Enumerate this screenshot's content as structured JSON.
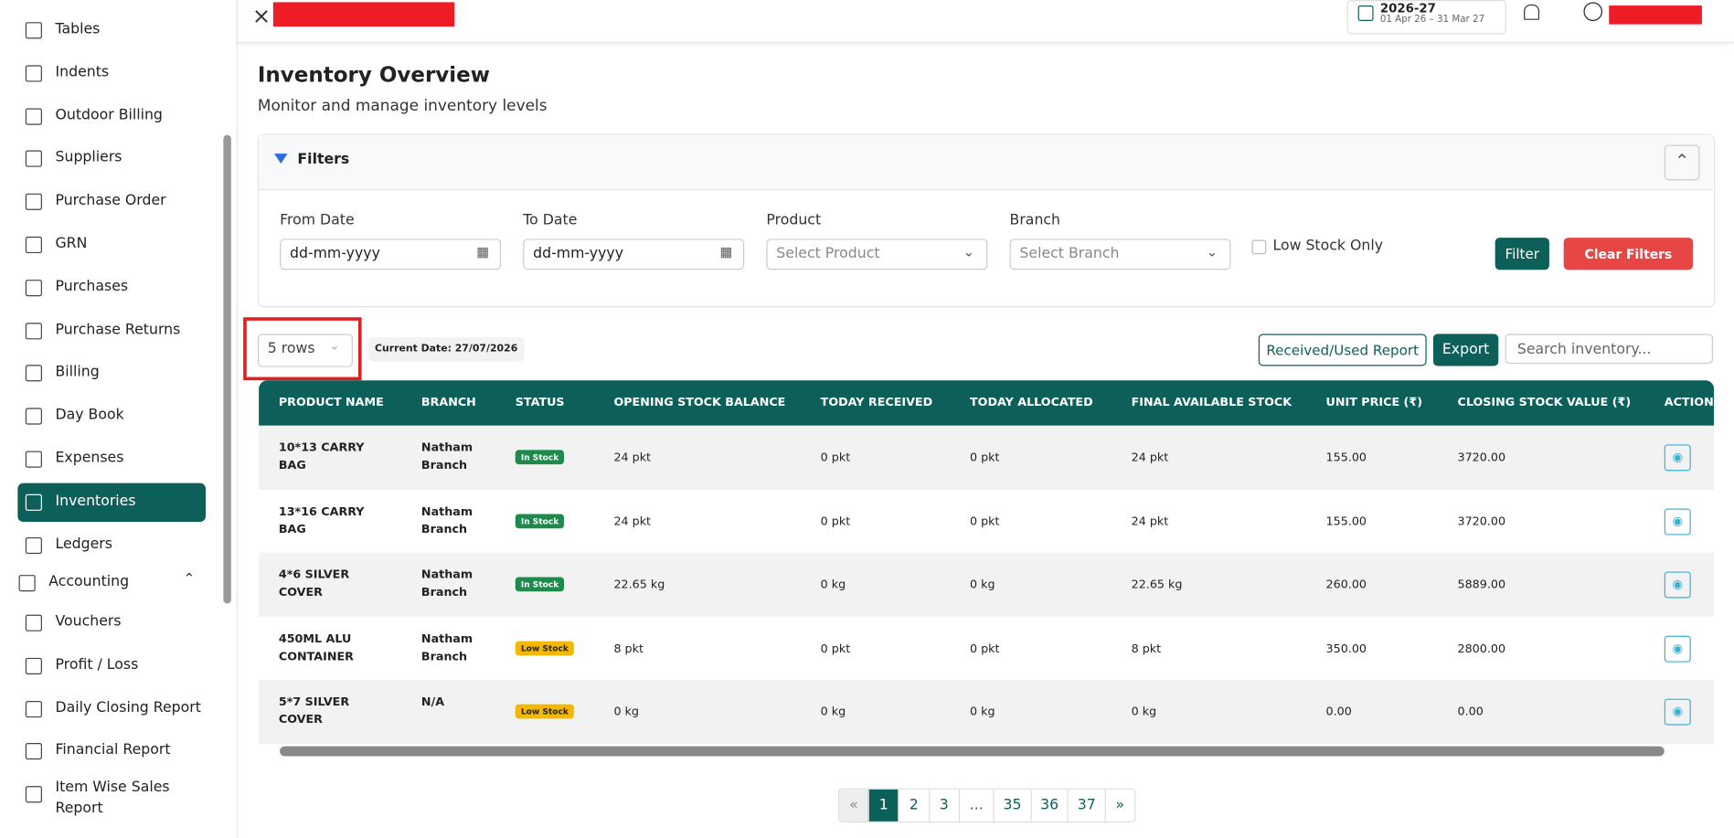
{
  "sidebar": {
    "items": [
      "Tables",
      "Indents",
      "Outdoor Billing",
      "Suppliers",
      "Purchase Order",
      "GRN",
      "Purchases",
      "Purchase Returns",
      "Billing",
      "Day Book",
      "Expenses",
      "Inventories",
      "Ledgers"
    ],
    "section": "Accounting",
    "section_items": [
      "Vouchers",
      "Profit / Loss",
      "Daily Closing Report",
      "Financial Report",
      "Item Wise Sales Report"
    ]
  },
  "header": {
    "year": "2026-27",
    "year_range": "01 Apr 26 – 31 Mar 27"
  },
  "page": {
    "title": "Inventory Overview",
    "subtitle": "Monitor and manage inventory levels"
  },
  "filters": {
    "title": "Filters",
    "fields": [
      {
        "label": "From Date",
        "placeholder": "dd-mm-yyyy"
      },
      {
        "label": "To Date",
        "placeholder": "dd-mm-yyyy"
      },
      {
        "label": "Product",
        "placeholder": "Select Product"
      },
      {
        "label": "Branch",
        "placeholder": "Select Branch"
      }
    ],
    "low_stock": "Low Stock Only",
    "filter_button": "Filter",
    "clear_button": "Clear Filters"
  },
  "toolbar": {
    "rows": "5 rows",
    "current_date": "Current Date: 27/07/2026",
    "report_button": "Received/Used Report",
    "export_button": "Export",
    "search_placeholder": "Search inventory..."
  },
  "table": {
    "columns": [
      "PRODUCT NAME",
      "BRANCH",
      "STATUS",
      "OPENING STOCK BALANCE",
      "TODAY RECEIVED",
      "TODAY ALLOCATED",
      "FINAL AVAILABLE STOCK",
      "UNIT PRICE (₹)",
      "CLOSING STOCK VALUE (₹)",
      "ACTION"
    ],
    "rows": [
      [
        "10*13 CARRY BAG",
        "Natham Branch",
        "In Stock",
        "24 pkt",
        "0 pkt",
        "0 pkt",
        "24 pkt",
        "155.00",
        "3720.00"
      ],
      [
        "13*16 CARRY BAG",
        "Natham Branch",
        "In Stock",
        "24 pkt",
        "0 pkt",
        "0 pkt",
        "24 pkt",
        "155.00",
        "3720.00"
      ],
      [
        "4*6 SILVER COVER",
        "Natham Branch",
        "In Stock",
        "22.65 kg",
        "0 kg",
        "0 kg",
        "22.65 kg",
        "260.00",
        "5889.00"
      ],
      [
        "450ML ALU CONTAINER",
        "Natham Branch",
        "Low Stock",
        "8 pkt",
        "0 pkt",
        "0 pkt",
        "8 pkt",
        "350.00",
        "2800.00"
      ],
      [
        "5*7 SILVER COVER",
        "N/A",
        "Low Stock",
        "0 kg",
        "0 kg",
        "0 kg",
        "0 kg",
        "0.00",
        "0.00"
      ]
    ],
    "badge_colors": [
      "#1e8a4c",
      "#1e8a4c",
      "#1e8a4c",
      "#f5b800",
      "#f5b800"
    ]
  },
  "pagination": [
    "«",
    "1",
    "2",
    "3",
    "...",
    "35",
    "36",
    "37",
    "»"
  ]
}
